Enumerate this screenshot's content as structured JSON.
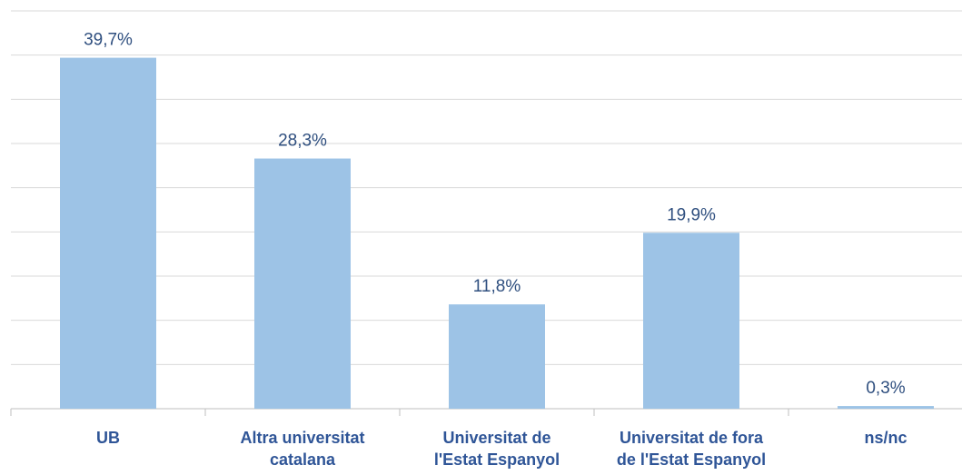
{
  "chart_data": {
    "type": "bar",
    "categories": [
      "UB",
      "Altra universitat catalana",
      "Universitat de l'Estat Espanyol",
      "Universitat de fora de l'Estat Espanyol",
      "ns/nc"
    ],
    "values": [
      39.7,
      28.3,
      11.8,
      19.9,
      0.3
    ],
    "value_labels": [
      "39,7%",
      "28,3%",
      "11,8%",
      "19,9%",
      "0,3%"
    ],
    "color": "#9dc3e6",
    "ylim": [
      0,
      45
    ],
    "yticks": [
      0,
      5,
      10,
      15,
      20,
      25,
      30,
      35,
      40,
      45
    ],
    "grid": true
  }
}
